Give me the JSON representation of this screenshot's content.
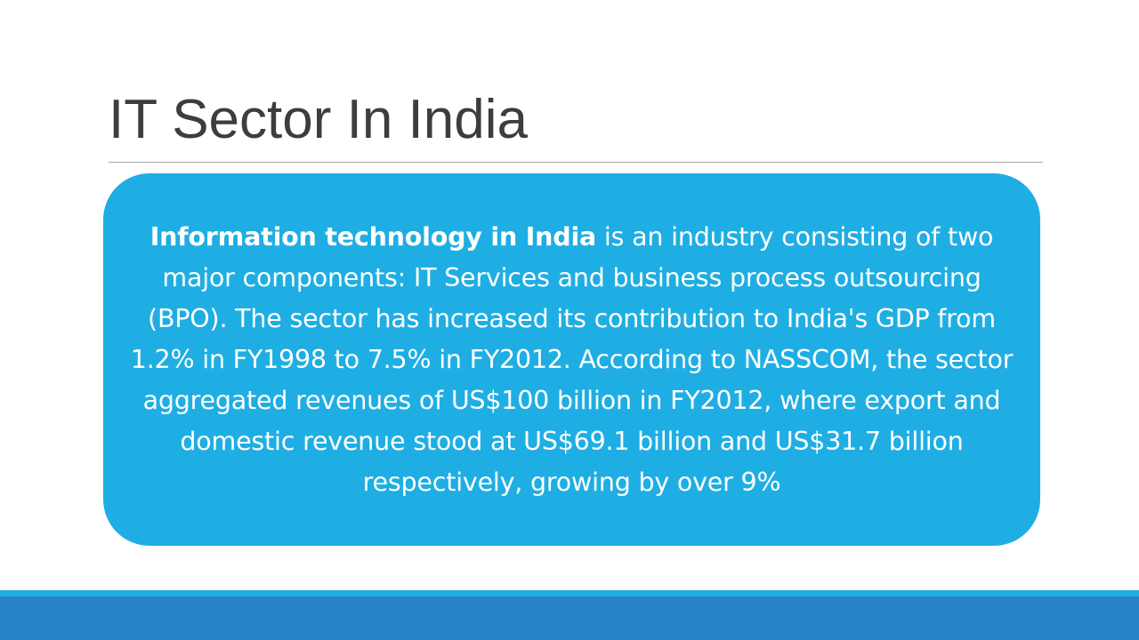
{
  "slide": {
    "title": "IT Sector In India",
    "content": {
      "lead": "Information technology in India",
      "body": " is an industry consisting of two major components: IT Services and business process outsourcing (BPO). The sector has increased its contribution to India's GDP from 1.2% in FY1998 to 7.5% in FY2012. According to NASSCOM, the sector aggregated revenues of US$100 billion in FY2012, where export and domestic revenue stood at US$69.1 billion and US$31.7 billion respectively, growing by over 9%"
    }
  },
  "colors": {
    "title_text": "#3d3d3d",
    "title_rule": "#a6a6a6",
    "content_box": "#1faee3",
    "content_text": "#ffffff",
    "footer_light": "#1faee3",
    "footer_dark": "#2784c8"
  }
}
